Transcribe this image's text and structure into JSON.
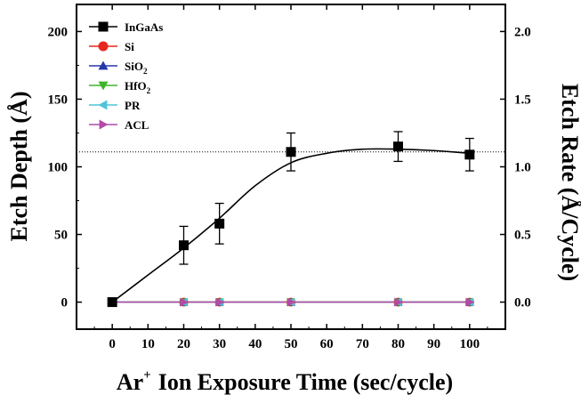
{
  "chart_data": {
    "type": "scatter",
    "title": "",
    "xlabel": "Ar",
    "xlabel_sup": "+",
    "xlabel_rest": "Ion Exposure Time (sec/cycle)",
    "ylabel": "Etch Depth (Å)",
    "ylabel_right": "Etch Rate (Å/Cycle)",
    "xlim": [
      -10,
      110
    ],
    "ylim": [
      -20,
      220
    ],
    "ylim_right": [
      -0.2,
      2.2
    ],
    "xticks": [
      0,
      10,
      20,
      30,
      40,
      50,
      60,
      70,
      80,
      90,
      100
    ],
    "yticks": [
      0,
      50,
      100,
      150,
      200
    ],
    "yticks_right": [
      "0.0",
      "0.5",
      "1.0",
      "1.5",
      "2.0"
    ],
    "reference_line_y": 111,
    "legend_position": "top-left",
    "series": [
      {
        "name": "InGaAs",
        "color": "#000000",
        "marker": "square",
        "x": [
          0,
          20,
          30,
          50,
          80,
          100
        ],
        "y": [
          0,
          42,
          58,
          111,
          115,
          109
        ],
        "err": [
          0,
          14,
          15,
          14,
          11,
          12
        ]
      },
      {
        "name": "Si",
        "color": "#e8261c",
        "marker": "circle",
        "x": [
          0,
          20,
          30,
          50,
          80,
          100
        ],
        "y": [
          0,
          0,
          0,
          0,
          0,
          0
        ]
      },
      {
        "name": "SiO2",
        "label_main": "SiO",
        "label_sub": "2",
        "color": "#2438a8",
        "marker": "triangle-up",
        "x": [
          0,
          20,
          30,
          50,
          80,
          100
        ],
        "y": [
          0,
          0,
          0,
          0,
          0,
          0
        ]
      },
      {
        "name": "HfO2",
        "label_main": "HfO",
        "label_sub": "2",
        "color": "#3cb528",
        "marker": "triangle-down",
        "x": [
          0,
          20,
          30,
          50,
          80,
          100
        ],
        "y": [
          0,
          0,
          0,
          0,
          0,
          0
        ]
      },
      {
        "name": "PR",
        "color": "#4fc3d9",
        "marker": "triangle-left",
        "x": [
          0,
          20,
          30,
          50,
          80,
          100
        ],
        "y": [
          0,
          0,
          0,
          0,
          0,
          0
        ]
      },
      {
        "name": "ACL",
        "color": "#b24aa8",
        "marker": "triangle-right",
        "x": [
          0,
          20,
          30,
          50,
          80,
          100
        ],
        "y": [
          0,
          0,
          0,
          0,
          0,
          0
        ]
      }
    ],
    "fit_curve": {
      "series": "InGaAs",
      "points": [
        [
          0,
          0
        ],
        [
          10,
          20
        ],
        [
          20,
          40
        ],
        [
          30,
          62
        ],
        [
          40,
          86
        ],
        [
          50,
          103
        ],
        [
          60,
          110
        ],
        [
          70,
          113
        ],
        [
          80,
          113
        ],
        [
          90,
          112
        ],
        [
          100,
          110
        ]
      ]
    }
  }
}
